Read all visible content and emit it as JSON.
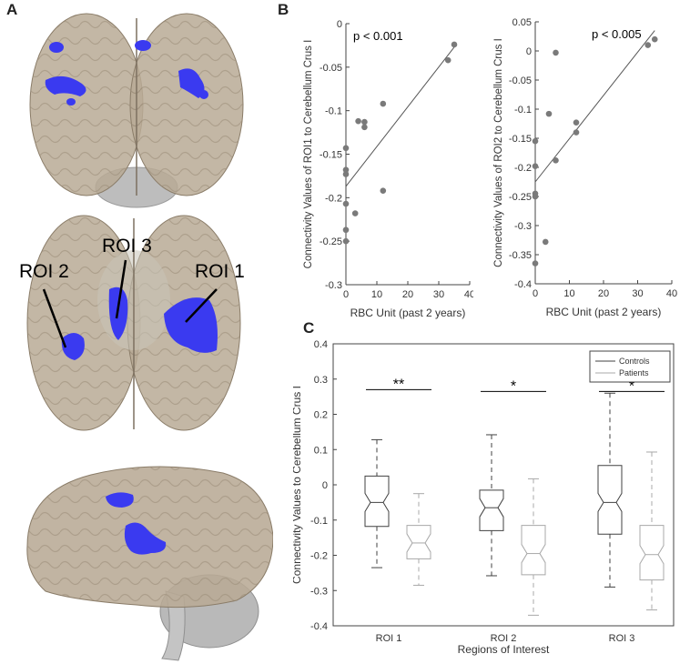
{
  "figure": {
    "panel_labels": {
      "a": "A",
      "b": "B",
      "c": "C"
    },
    "brain_labels": {
      "roi1": "ROI 1",
      "roi2": "ROI 2",
      "roi3": "ROI 3"
    },
    "colors": {
      "brain": "#b8aa95",
      "brain_edge": "#8a7c68",
      "cerebellum": "#b9b9b9",
      "roi": "#3a3af0",
      "points": "#7a7a7a",
      "axis": "#444444",
      "controls": "#404040",
      "patients": "#a8a8a8"
    }
  },
  "chart_data": [
    {
      "type": "scatter",
      "panel": "B-left",
      "annotation": "p < 0.001",
      "xlabel": "RBC Unit (past 2 years)",
      "ylabel": "Connectivity Values of ROI1 to Cerebellum Crus I",
      "xlim": [
        0,
        40
      ],
      "ylim": [
        -0.3,
        0
      ],
      "xticks": [
        "0",
        "10",
        "20",
        "30",
        "40"
      ],
      "yticks": [
        "0",
        "-0.05",
        "-0.1",
        "-0.15",
        "-0.2",
        "-0.25",
        "-0.3"
      ],
      "points": [
        {
          "x": 0,
          "y": -0.143
        },
        {
          "x": 0,
          "y": -0.168
        },
        {
          "x": 0,
          "y": -0.173
        },
        {
          "x": 0,
          "y": -0.207
        },
        {
          "x": 0,
          "y": -0.237
        },
        {
          "x": 0,
          "y": -0.25
        },
        {
          "x": 3,
          "y": -0.218
        },
        {
          "x": 4,
          "y": -0.112
        },
        {
          "x": 6,
          "y": -0.113
        },
        {
          "x": 6,
          "y": -0.119
        },
        {
          "x": 12,
          "y": -0.092
        },
        {
          "x": 12,
          "y": -0.192
        },
        {
          "x": 33,
          "y": -0.042
        },
        {
          "x": 35,
          "y": -0.024
        }
      ],
      "fit": {
        "x": [
          0,
          35
        ],
        "y": [
          -0.187,
          -0.027
        ]
      },
      "grid": false
    },
    {
      "type": "scatter",
      "panel": "B-right",
      "annotation": "p < 0.005",
      "xlabel": "RBC Unit (past 2 years)",
      "ylabel": "Connectivity Values of ROI2 to Cerebellum Crus I",
      "xlim": [
        0,
        40
      ],
      "ylim": [
        -0.4,
        0.05
      ],
      "xticks": [
        "0",
        "10",
        "20",
        "30",
        "40"
      ],
      "yticks": [
        "0.05",
        "0",
        "-0.05",
        "-0.1",
        "-0.15",
        "-0.2",
        "-0.25",
        "-0.3",
        "-0.35",
        "-0.4"
      ],
      "points": [
        {
          "x": 0,
          "y": -0.155
        },
        {
          "x": 0,
          "y": -0.198
        },
        {
          "x": 0,
          "y": -0.245
        },
        {
          "x": 0,
          "y": -0.25
        },
        {
          "x": 0,
          "y": -0.365
        },
        {
          "x": 3,
          "y": -0.328
        },
        {
          "x": 4,
          "y": -0.108
        },
        {
          "x": 6,
          "y": -0.003
        },
        {
          "x": 6,
          "y": -0.188
        },
        {
          "x": 12,
          "y": -0.123
        },
        {
          "x": 12,
          "y": -0.14
        },
        {
          "x": 33,
          "y": 0.01
        },
        {
          "x": 35,
          "y": 0.02
        }
      ],
      "fit": {
        "x": [
          0,
          35
        ],
        "y": [
          -0.225,
          0.035
        ]
      },
      "grid": false
    },
    {
      "type": "box",
      "panel": "C",
      "xlabel": "Regions of Interest",
      "ylabel": "Connectivity Values to Cerebellum Crus I",
      "ylim": [
        -0.4,
        0.4
      ],
      "yticks": [
        "0.4",
        "0.3",
        "0.2",
        "0.1",
        "0",
        "-0.1",
        "-0.2",
        "-0.3",
        "-0.4"
      ],
      "categories": [
        "ROI 1",
        "ROI 2",
        "ROI 3"
      ],
      "legend": {
        "position": "top-right",
        "entries": [
          "Controls",
          "Patients"
        ]
      },
      "significance": [
        "**",
        "*",
        "*"
      ],
      "series": [
        {
          "name": "Controls",
          "boxes": [
            {
              "min": -0.235,
              "q1": -0.118,
              "median": -0.05,
              "q3": 0.025,
              "max": 0.128
            },
            {
              "min": -0.258,
              "q1": -0.13,
              "median": -0.065,
              "q3": -0.015,
              "max": 0.142
            },
            {
              "min": -0.29,
              "q1": -0.14,
              "median": -0.05,
              "q3": 0.055,
              "max": 0.26
            }
          ]
        },
        {
          "name": "Patients",
          "boxes": [
            {
              "min": -0.285,
              "q1": -0.21,
              "median": -0.165,
              "q3": -0.115,
              "max": -0.025
            },
            {
              "min": -0.37,
              "q1": -0.255,
              "median": -0.195,
              "q3": -0.115,
              "max": 0.017
            },
            {
              "min": -0.355,
              "q1": -0.27,
              "median": -0.198,
              "q3": -0.115,
              "max": 0.093
            }
          ]
        }
      ],
      "grid": false
    }
  ]
}
